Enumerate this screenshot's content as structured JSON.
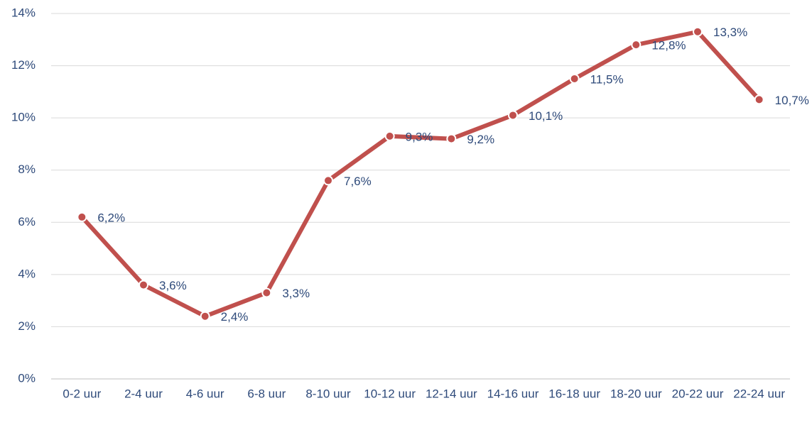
{
  "chart_data": {
    "type": "line",
    "categories": [
      "0-2 uur",
      "2-4 uur",
      "4-6 uur",
      "6-8 uur",
      "8-10 uur",
      "10-12 uur",
      "12-14 uur",
      "14-16 uur",
      "16-18 uur",
      "18-20 uur",
      "20-22 uur",
      "22-24 uur"
    ],
    "series": [
      {
        "color": "#c0504d",
        "values": [
          6.2,
          3.6,
          2.4,
          3.3,
          7.6,
          9.3,
          9.2,
          10.1,
          11.5,
          12.8,
          13.3,
          10.7
        ],
        "value_labels": [
          "6,2%",
          "3,6%",
          "2,4%",
          "3,3%",
          "7,6%",
          "9,3%",
          "9,2%",
          "10,1%",
          "11,5%",
          "12,8%",
          "13,3%",
          "10,7%"
        ]
      }
    ],
    "ylim": [
      0,
      14
    ],
    "yticks": [
      {
        "value": 0,
        "label": "0%"
      },
      {
        "value": 2,
        "label": "2%"
      },
      {
        "value": 4,
        "label": "4%"
      },
      {
        "value": 6,
        "label": "6%"
      },
      {
        "value": 8,
        "label": "8%"
      },
      {
        "value": 10,
        "label": "10%"
      },
      {
        "value": 12,
        "label": "12%"
      },
      {
        "value": 14,
        "label": "14%"
      }
    ],
    "grid": true
  }
}
